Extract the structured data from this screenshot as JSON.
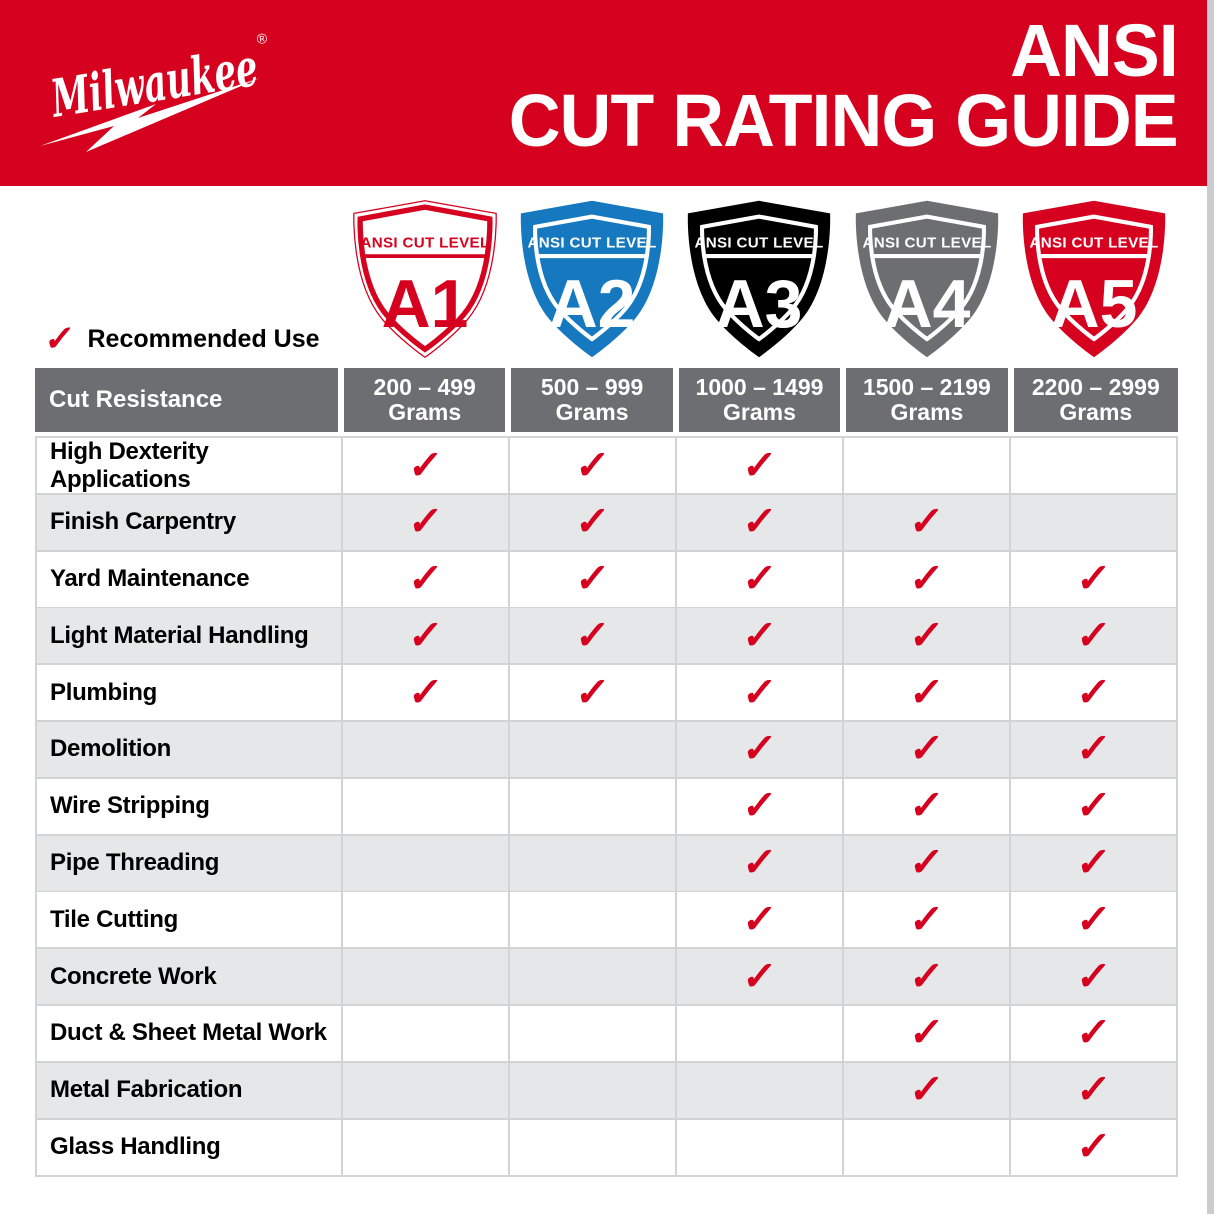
{
  "header": {
    "brand": "Milwaukee",
    "reg_mark": "®",
    "title_line1": "ANSI",
    "title_line2": "CUT RATING GUIDE"
  },
  "legend": {
    "label": "Recommended Use"
  },
  "icons": {
    "check_glyph": "✓"
  },
  "shields": [
    {
      "band_label": "ANSI CUT LEVEL",
      "level": "A1",
      "style": "outline",
      "fill": "#FFFFFF",
      "accent": "#D6011F",
      "text_color": "#D6011F"
    },
    {
      "band_label": "ANSI CUT LEVEL",
      "level": "A2",
      "style": "filled",
      "fill": "#1679BF",
      "accent": "#FFFFFF",
      "text_color": "#FFFFFF"
    },
    {
      "band_label": "ANSI CUT LEVEL",
      "level": "A3",
      "style": "filled",
      "fill": "#000000",
      "accent": "#FFFFFF",
      "text_color": "#FFFFFF"
    },
    {
      "band_label": "ANSI CUT LEVEL",
      "level": "A4",
      "style": "filled",
      "fill": "#6D6E71",
      "accent": "#FFFFFF",
      "text_color": "#FFFFFF"
    },
    {
      "band_label": "ANSI CUT LEVEL",
      "level": "A5",
      "style": "filled",
      "fill": "#D6011F",
      "accent": "#FFFFFF",
      "text_color": "#FFFFFF"
    }
  ],
  "table": {
    "corner_label": "Cut Resistance",
    "columns": [
      {
        "range": "200 – 499",
        "unit": "Grams"
      },
      {
        "range": "500 – 999",
        "unit": "Grams"
      },
      {
        "range": "1000 – 1499",
        "unit": "Grams"
      },
      {
        "range": "1500 – 2199",
        "unit": "Grams"
      },
      {
        "range": "2200 – 2999",
        "unit": "Grams"
      }
    ],
    "rows": [
      {
        "label": "High Dexterity Applications",
        "checks": [
          true,
          true,
          true,
          false,
          false
        ]
      },
      {
        "label": "Finish Carpentry",
        "checks": [
          true,
          true,
          true,
          true,
          false
        ]
      },
      {
        "label": "Yard Maintenance",
        "checks": [
          true,
          true,
          true,
          true,
          true
        ]
      },
      {
        "label": "Light Material Handling",
        "checks": [
          true,
          true,
          true,
          true,
          true
        ]
      },
      {
        "label": "Plumbing",
        "checks": [
          true,
          true,
          true,
          true,
          true
        ]
      },
      {
        "label": "Demolition",
        "checks": [
          false,
          false,
          true,
          true,
          true
        ]
      },
      {
        "label": "Wire Stripping",
        "checks": [
          false,
          false,
          true,
          true,
          true
        ]
      },
      {
        "label": "Pipe Threading",
        "checks": [
          false,
          false,
          true,
          true,
          true
        ]
      },
      {
        "label": "Tile Cutting",
        "checks": [
          false,
          false,
          true,
          true,
          true
        ]
      },
      {
        "label": "Concrete Work",
        "checks": [
          false,
          false,
          true,
          true,
          true
        ]
      },
      {
        "label": "Duct & Sheet Metal Work",
        "checks": [
          false,
          false,
          false,
          true,
          true
        ]
      },
      {
        "label": "Metal Fabrication",
        "checks": [
          false,
          false,
          false,
          true,
          true
        ]
      },
      {
        "label": "Glass Handling",
        "checks": [
          false,
          false,
          false,
          false,
          true
        ]
      }
    ]
  },
  "colors": {
    "brand_red": "#D6011F",
    "blue": "#1679BF",
    "gray": "#6D6E71",
    "stripe": "#E6E7E8",
    "grid": "#D1D3D4",
    "check": "#D6011F"
  }
}
